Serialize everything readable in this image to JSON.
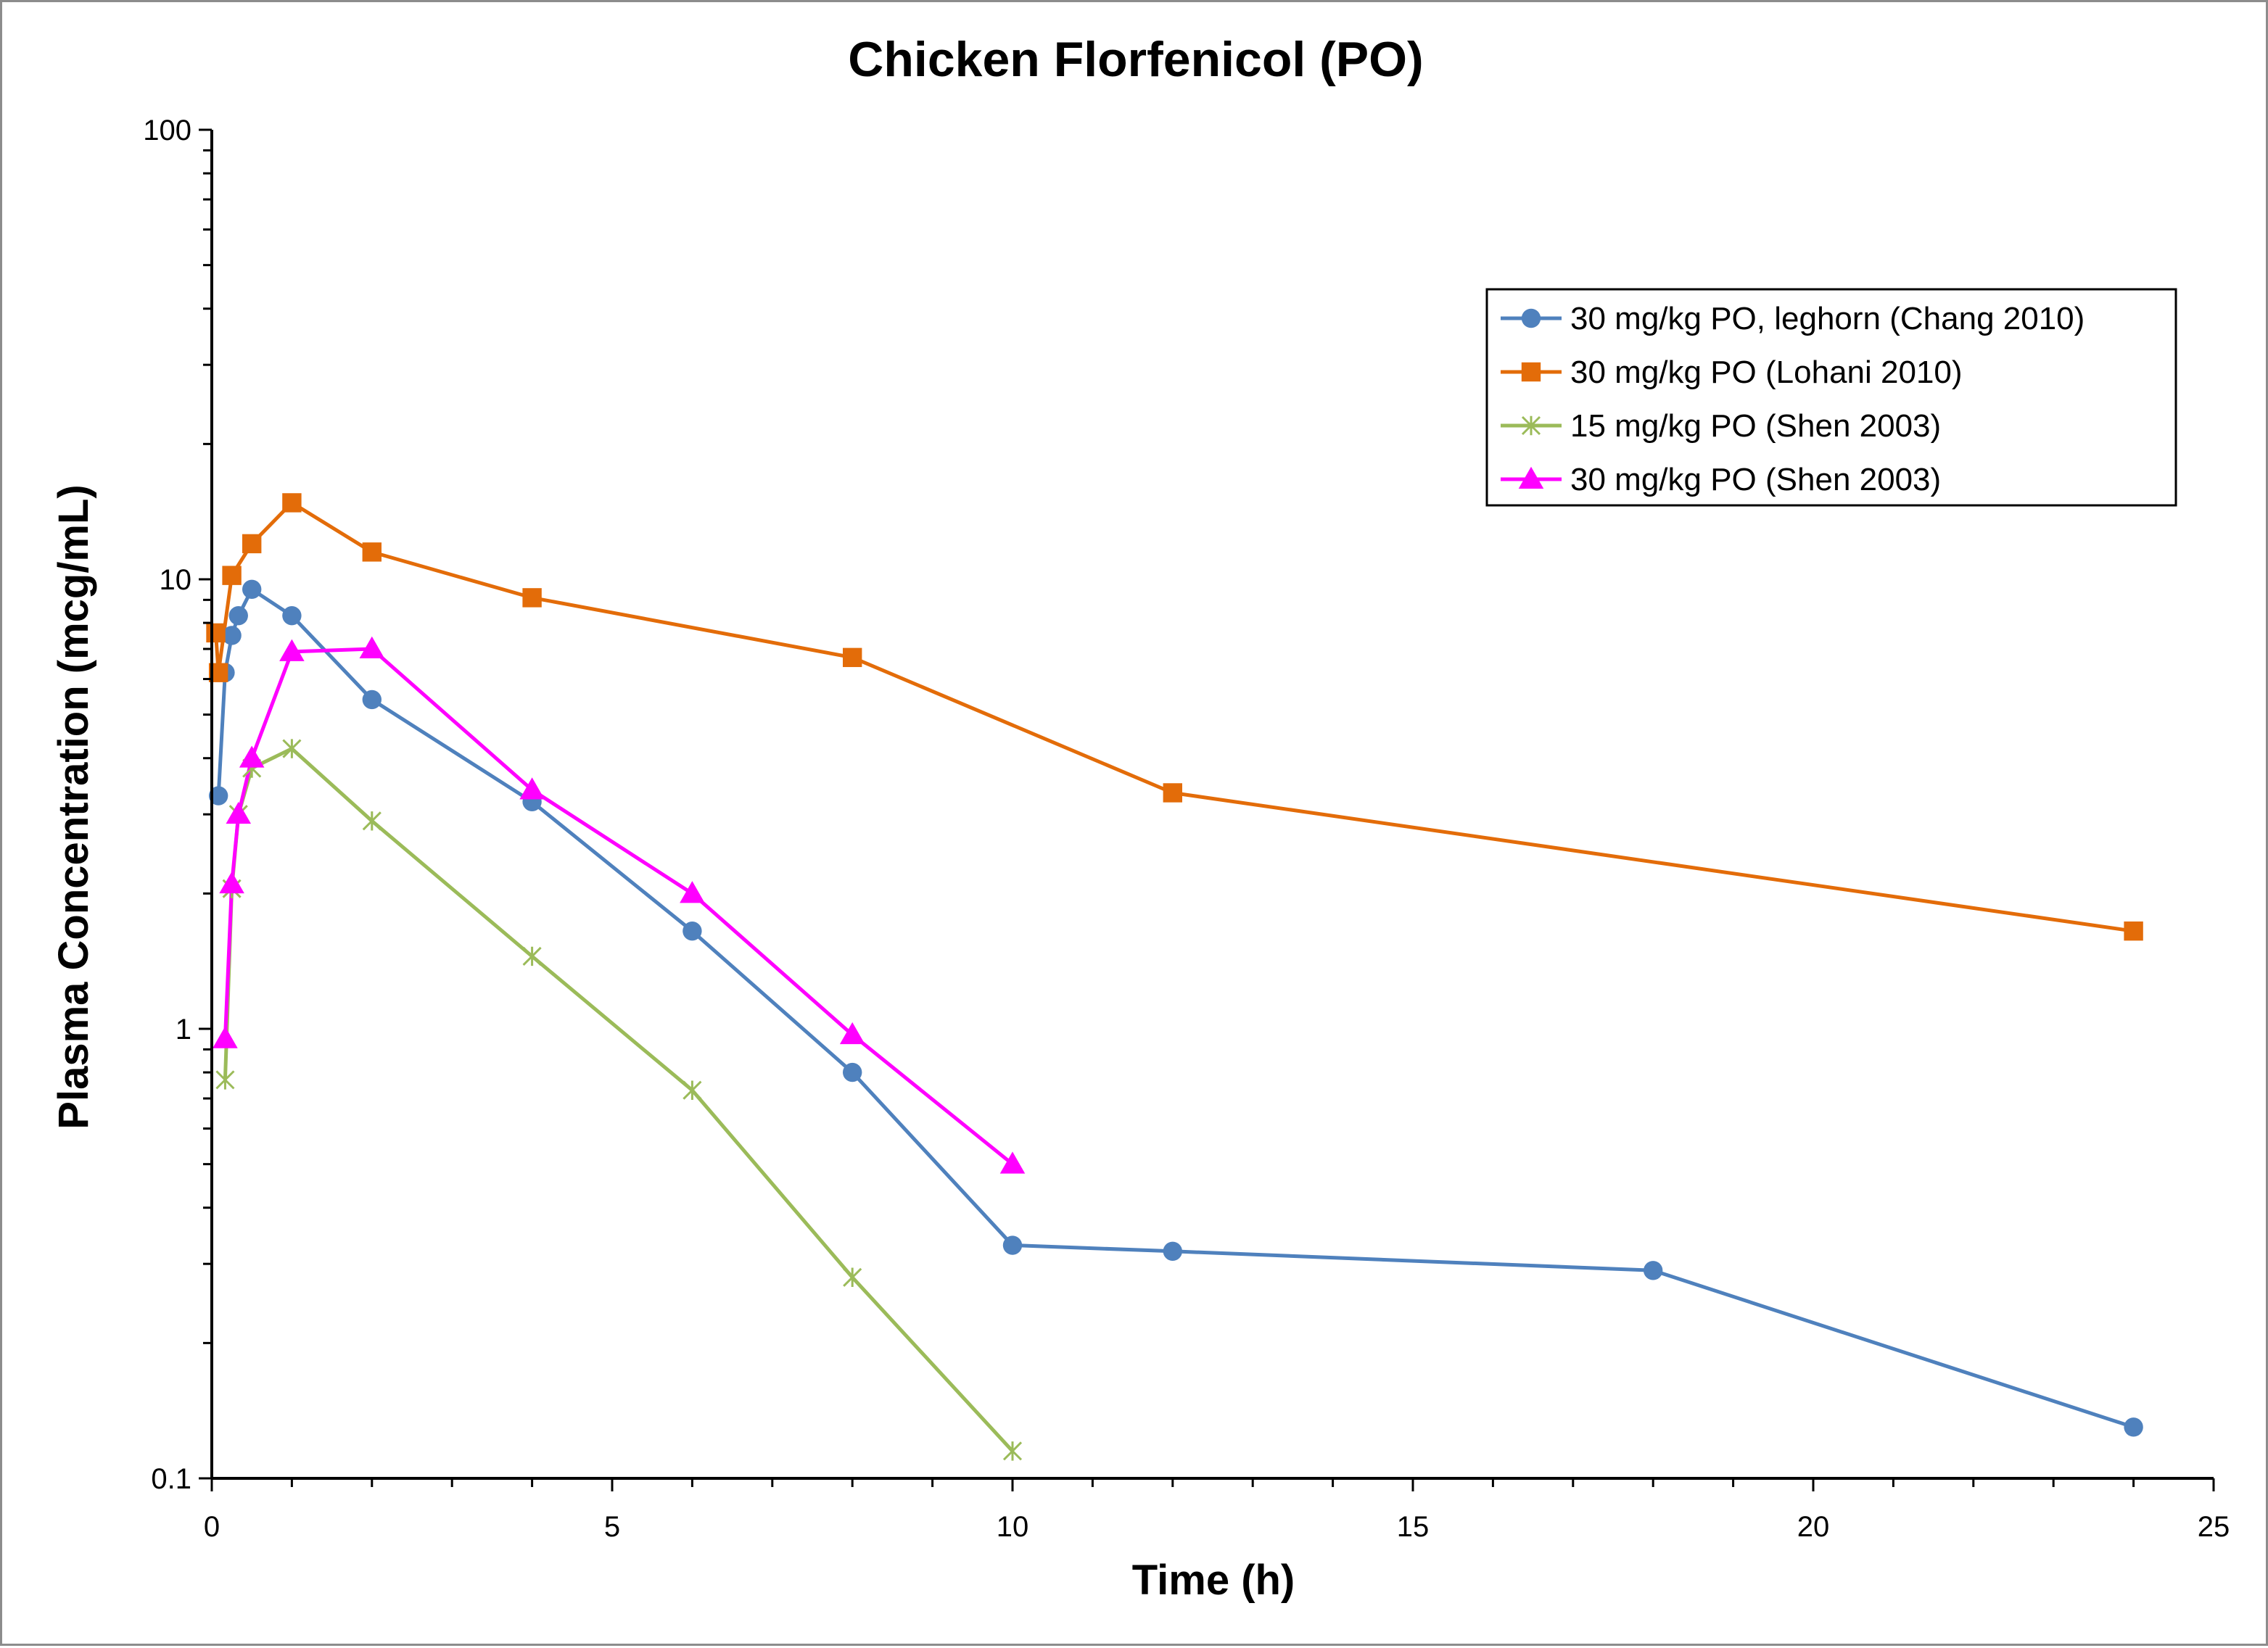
{
  "chart_data": {
    "type": "scatter",
    "title": "Chicken Florfenicol (PO)",
    "xlabel": "Time (h)",
    "ylabel": "Plasma Concentration (mcg/mL)",
    "x_scale": "linear",
    "y_scale": "log",
    "xlim": [
      0,
      25
    ],
    "ylim": [
      0.1,
      100
    ],
    "x_ticks": [
      "0",
      "5",
      "10",
      "15",
      "20",
      "25"
    ],
    "y_ticks": [
      "0.1",
      "1",
      "10",
      "100"
    ],
    "x_tick_values": [
      0,
      5,
      10,
      15,
      20,
      25
    ],
    "y_tick_values": [
      0.1,
      1,
      10,
      100
    ],
    "grid": false,
    "legend_position": "top-right",
    "series": [
      {
        "name": "30 mg/kg PO, leghorn (Chang 2010)",
        "color": "#4f81bd",
        "marker": "circle",
        "x": [
          0.083,
          0.167,
          0.25,
          0.333,
          0.5,
          1,
          2,
          4,
          6,
          8,
          10,
          12,
          18,
          24
        ],
        "y": [
          3.3,
          6.2,
          7.5,
          8.3,
          9.5,
          8.3,
          5.4,
          3.2,
          1.65,
          0.8,
          0.33,
          0.32,
          0.29,
          0.13
        ]
      },
      {
        "name": "30 mg/kg PO (Lohani 2010)",
        "color": "#e36c09",
        "marker": "square",
        "x": [
          0.05,
          0.083,
          0.25,
          0.5,
          1,
          2,
          4,
          8,
          12,
          24
        ],
        "y": [
          7.6,
          6.2,
          10.2,
          12.0,
          14.8,
          11.5,
          9.1,
          6.7,
          3.35,
          1.65
        ]
      },
      {
        "name": "15 mg/kg PO (Shen 2003)",
        "color": "#9bbb59",
        "marker": "asterisk",
        "x": [
          0.167,
          0.25,
          0.333,
          0.5,
          1,
          2,
          4,
          6,
          8,
          10
        ],
        "y": [
          0.77,
          2.05,
          3.0,
          3.8,
          4.2,
          2.9,
          1.45,
          0.73,
          0.28,
          0.115
        ]
      },
      {
        "name": "30 mg/kg PO (Shen 2003)",
        "color": "#ff00ff",
        "marker": "triangle",
        "x": [
          0.167,
          0.25,
          0.333,
          0.5,
          1,
          2,
          4,
          6,
          8,
          10
        ],
        "y": [
          0.95,
          2.1,
          3.0,
          4.0,
          6.9,
          7.0,
          3.4,
          2.0,
          0.97,
          0.5
        ]
      }
    ]
  }
}
